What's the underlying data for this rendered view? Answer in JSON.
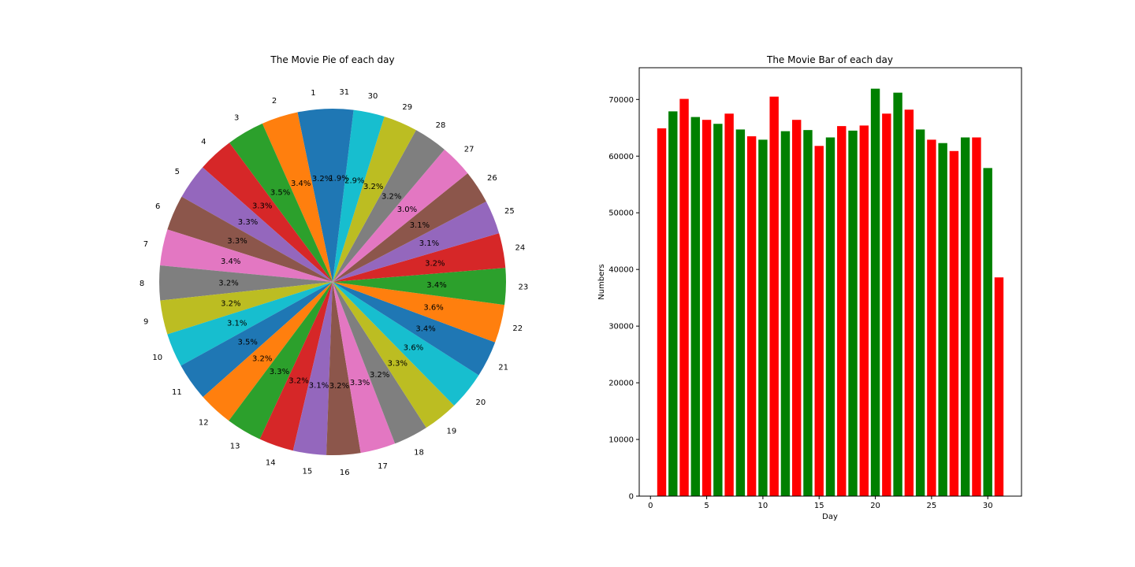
{
  "chart_data": [
    {
      "type": "pie",
      "title": "The Movie Pie of each day",
      "labels": [
        "1",
        "2",
        "3",
        "4",
        "5",
        "6",
        "7",
        "8",
        "9",
        "10",
        "11",
        "12",
        "13",
        "14",
        "15",
        "16",
        "17",
        "18",
        "19",
        "20",
        "21",
        "22",
        "23",
        "24",
        "25",
        "26",
        "27",
        "28",
        "29",
        "30",
        "31"
      ],
      "values": [
        64900,
        67900,
        70100,
        66900,
        66400,
        65700,
        67500,
        64700,
        63500,
        62900,
        70500,
        64400,
        66400,
        64600,
        61800,
        63300,
        65300,
        64500,
        65400,
        71900,
        67500,
        71200,
        68200,
        64700,
        62900,
        62300,
        60900,
        63300,
        63300,
        57900,
        38600
      ],
      "percent_labels": [
        "3.2%",
        "3.4%",
        "3.5%",
        "3.3%",
        "3.3%",
        "3.3%",
        "3.4%",
        "3.2%",
        "3.2%",
        "3.1%",
        "3.5%",
        "3.2%",
        "3.3%",
        "3.2%",
        "3.1%",
        "3.2%",
        "3.3%",
        "3.2%",
        "3.3%",
        "3.6%",
        "3.4%",
        "3.6%",
        "3.4%",
        "3.2%",
        "3.1%",
        "3.1%",
        "3.0%",
        "3.2%",
        "3.2%",
        "2.9%",
        "1.9%"
      ],
      "colors": [
        "#1f77b4",
        "#ff7f0e",
        "#2ca02c",
        "#d62728",
        "#9467bd",
        "#8c564b",
        "#e377c2",
        "#7f7f7f",
        "#bcbd22",
        "#17becf"
      ],
      "start_angle_deg": 90,
      "direction": "counterclockwise"
    },
    {
      "type": "bar",
      "title": "The Movie Bar of each day",
      "xlabel": "Day",
      "ylabel": "Numbers",
      "x": [
        1,
        2,
        3,
        4,
        5,
        6,
        7,
        8,
        9,
        10,
        11,
        12,
        13,
        14,
        15,
        16,
        17,
        18,
        19,
        20,
        21,
        22,
        23,
        24,
        25,
        26,
        27,
        28,
        29,
        30,
        31
      ],
      "values": [
        64900,
        67900,
        70100,
        66900,
        66400,
        65700,
        67500,
        64700,
        63500,
        62900,
        70500,
        64400,
        66400,
        64600,
        61800,
        63300,
        65300,
        64500,
        65400,
        71900,
        67500,
        71200,
        68200,
        64700,
        62900,
        62300,
        60900,
        63300,
        63300,
        57900,
        38600
      ],
      "bar_colors": [
        "#ff0000",
        "#008000"
      ],
      "xlim": [
        -1,
        33
      ],
      "ylim": [
        0,
        75600
      ],
      "xticks": [
        "0",
        "5",
        "10",
        "15",
        "20",
        "25",
        "30"
      ],
      "yticks": [
        "0",
        "10000",
        "20000",
        "30000",
        "40000",
        "50000",
        "60000",
        "70000"
      ],
      "grid": false,
      "legend": "none"
    }
  ]
}
